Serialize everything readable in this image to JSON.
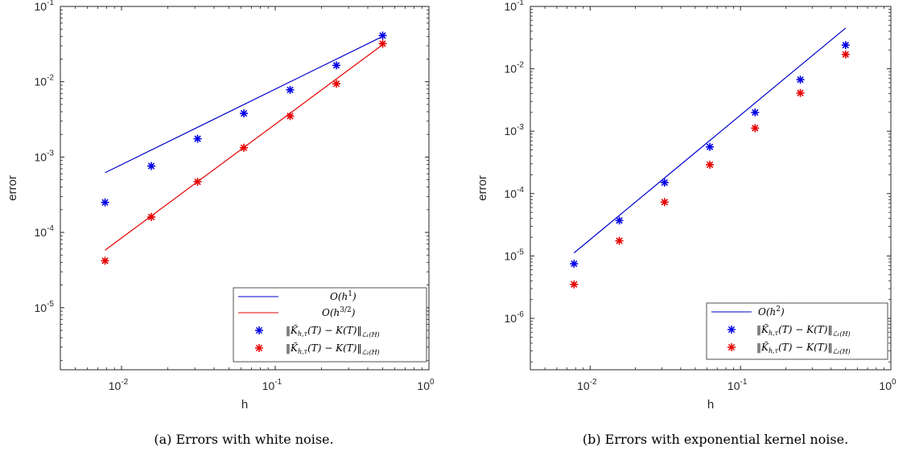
{
  "chart_data": [
    {
      "type": "scatter",
      "caption": "(a) Errors with white noise.",
      "xlabel": "h",
      "ylabel": "error",
      "xscale": "log",
      "yscale": "log",
      "xlim": [
        0.004,
        1
      ],
      "ylim": [
        1.5e-06,
        0.1
      ],
      "xticks": [
        0.01,
        0.1,
        1
      ],
      "xtick_labels": [
        [
          "10",
          "-2"
        ],
        [
          "10",
          "-1"
        ],
        [
          "10",
          "0"
        ]
      ],
      "yticks": [
        1e-05,
        0.0001,
        0.001,
        0.01,
        0.1
      ],
      "ytick_labels": [
        [
          "10",
          "-5"
        ],
        [
          "10",
          "-4"
        ],
        [
          "10",
          "-3"
        ],
        [
          "10",
          "-2"
        ],
        [
          "10",
          "-1"
        ]
      ],
      "grid": false,
      "legend_position": "bottom-right",
      "lines": [
        {
          "name": "O(h^1)",
          "color": "#0000cc",
          "x": [
            0.0078125,
            0.5
          ],
          "y": [
            0.00062,
            0.04
          ]
        },
        {
          "name": "O(h^{3/2})",
          "color": "#e60000",
          "x": [
            0.0078125,
            0.5
          ],
          "y": [
            5.8e-05,
            0.031
          ]
        }
      ],
      "markers": [
        {
          "name": "L1",
          "color": "#0000e6",
          "x": [
            0.0078125,
            0.015625,
            0.03125,
            0.0625,
            0.125,
            0.25,
            0.5
          ],
          "y": [
            0.00025,
            0.00076,
            0.00175,
            0.0038,
            0.0078,
            0.0165,
            0.041
          ]
        },
        {
          "name": "L2",
          "color": "#e60000",
          "x": [
            0.0078125,
            0.015625,
            0.03125,
            0.0625,
            0.125,
            0.25,
            0.5
          ],
          "y": [
            4.2e-05,
            0.00016,
            0.00047,
            0.00133,
            0.0035,
            0.0094,
            0.032
          ]
        }
      ]
    },
    {
      "type": "scatter",
      "caption": "(b) Errors with exponential kernel noise.",
      "xlabel": "h",
      "ylabel": "error",
      "xscale": "log",
      "yscale": "log",
      "xlim": [
        0.004,
        1
      ],
      "ylim": [
        1.5e-07,
        0.1
      ],
      "xticks": [
        0.01,
        0.1,
        1
      ],
      "xtick_labels": [
        [
          "10",
          "-2"
        ],
        [
          "10",
          "-1"
        ],
        [
          "10",
          "0"
        ]
      ],
      "yticks": [
        1e-06,
        1e-05,
        0.0001,
        0.001,
        0.01,
        0.1
      ],
      "ytick_labels": [
        [
          "10",
          "-6"
        ],
        [
          "10",
          "-5"
        ],
        [
          "10",
          "-4"
        ],
        [
          "10",
          "-3"
        ],
        [
          "10",
          "-2"
        ],
        [
          "10",
          "-1"
        ]
      ],
      "grid": false,
      "legend_position": "bottom-right",
      "lines": [
        {
          "name": "O(h^2)",
          "color": "#0000cc",
          "x": [
            0.0078125,
            0.5
          ],
          "y": [
            1.12e-05,
            0.045
          ]
        }
      ],
      "markers": [
        {
          "name": "L1",
          "color": "#0000e6",
          "x": [
            0.0078125,
            0.015625,
            0.03125,
            0.0625,
            0.125,
            0.25,
            0.5
          ],
          "y": [
            7.5e-06,
            3.7e-05,
            0.00015,
            0.00056,
            0.002,
            0.0067,
            0.024
          ]
        },
        {
          "name": "L2",
          "color": "#e60000",
          "x": [
            0.0078125,
            0.015625,
            0.03125,
            0.0625,
            0.125,
            0.25,
            0.5
          ],
          "y": [
            3.5e-06,
            1.75e-05,
            7.3e-05,
            0.00029,
            0.00112,
            0.0041,
            0.017
          ]
        }
      ]
    }
  ]
}
